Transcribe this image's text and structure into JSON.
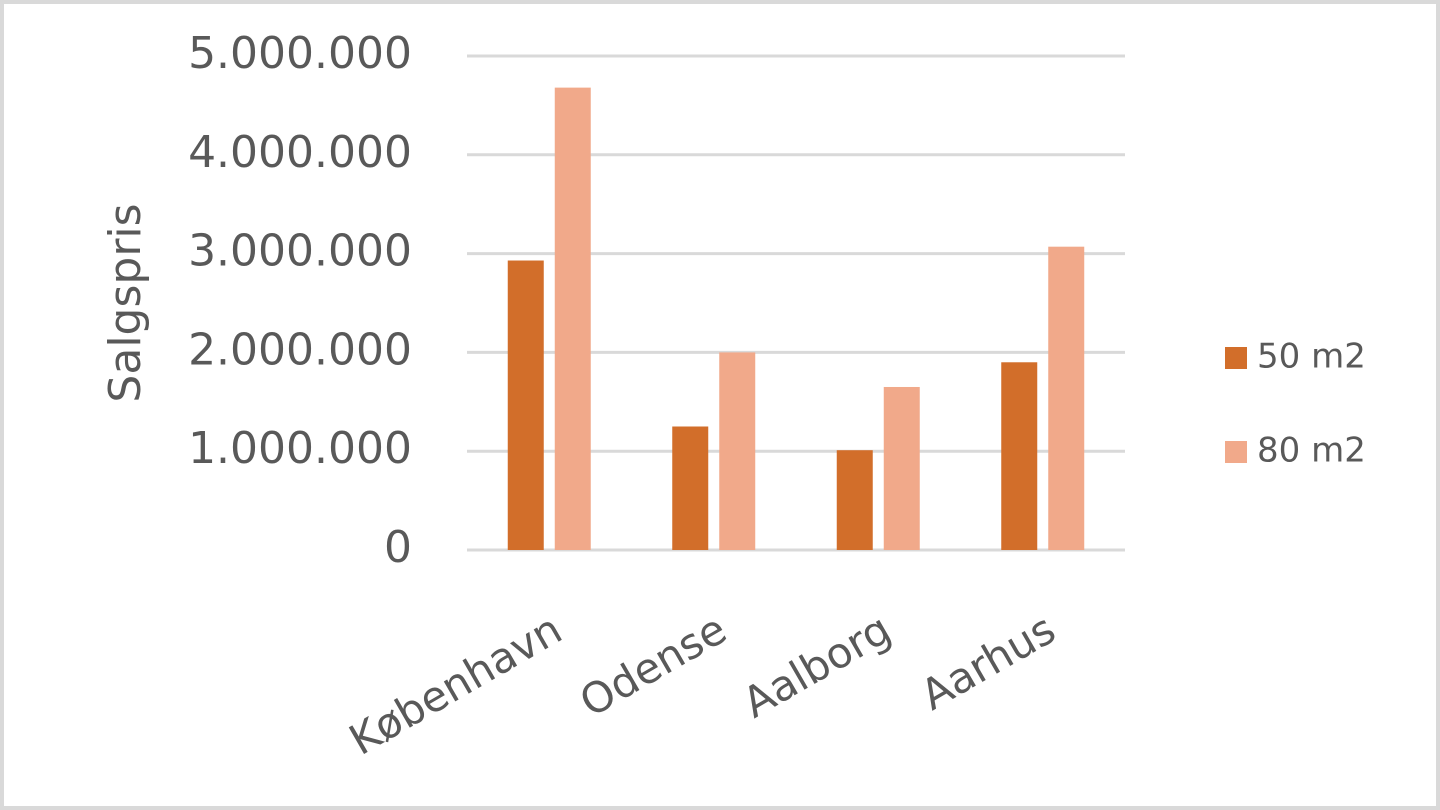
{
  "chart_data": {
    "type": "bar",
    "y_label": "Salgspris",
    "categories": [
      "København",
      "Odense",
      "Aalborg",
      "Aarhus"
    ],
    "series": [
      {
        "name": "50 m2",
        "color": "#d26e2a",
        "values": [
          2930000,
          1250000,
          1010000,
          1900000
        ]
      },
      {
        "name": "80 m2",
        "color": "#f1a98a",
        "values": [
          4680000,
          2000000,
          1650000,
          3070000
        ]
      }
    ],
    "ylim": [
      0,
      5000000
    ],
    "yticks": [
      0,
      {
        "value": 1000000,
        "label": "1.000.000"
      },
      {
        "value": 2000000,
        "label": "2.000.000"
      },
      {
        "value": 3000000,
        "label": "3.000.000"
      },
      {
        "value": 4000000,
        "label": "4.000.000"
      },
      {
        "value": 5000000,
        "label": "5.000.000"
      }
    ],
    "grid": true,
    "legend": "right"
  }
}
